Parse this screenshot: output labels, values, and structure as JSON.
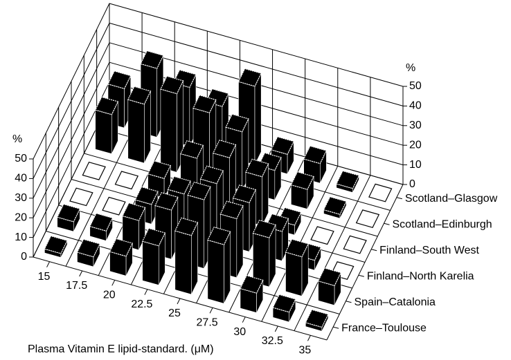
{
  "chart_data": {
    "type": "bar3d",
    "xlabel": "Plasma Vitamin E lipid-standard. (μM)",
    "zlabel": "%",
    "categories": [
      "15",
      "17.5",
      "20",
      "22.5",
      "25",
      "27.5",
      "30",
      "32.5",
      "35"
    ],
    "series": [
      {
        "name": "France–Toulouse",
        "color": "#000000",
        "values": [
          2,
          5,
          10,
          20,
          30,
          30,
          10,
          5,
          2
        ]
      },
      {
        "name": "Spain–Catalonia",
        "color": "#000000",
        "values": [
          5,
          5,
          15,
          25,
          35,
          30,
          25,
          20,
          10
        ]
      },
      {
        "name": "Finland–North Karelia",
        "color": "#000000",
        "values": [
          0,
          0,
          10,
          20,
          30,
          25,
          15,
          5,
          0
        ]
      },
      {
        "name": "Finland–South West",
        "color": "#000000",
        "values": [
          0,
          0,
          10,
          25,
          30,
          25,
          5,
          0,
          0
        ]
      },
      {
        "name": "Scotland–Edinburgh",
        "color": "#000000",
        "values": [
          20,
          30,
          40,
          35,
          30,
          15,
          10,
          2,
          0
        ]
      },
      {
        "name": "Scotland–Glasgow",
        "color": "#000000",
        "values": [
          20,
          35,
          30,
          25,
          40,
          10,
          10,
          2,
          0
        ]
      }
    ],
    "zlim": [
      0,
      50
    ],
    "zticks": [
      0,
      10,
      20,
      30,
      40,
      50
    ]
  }
}
